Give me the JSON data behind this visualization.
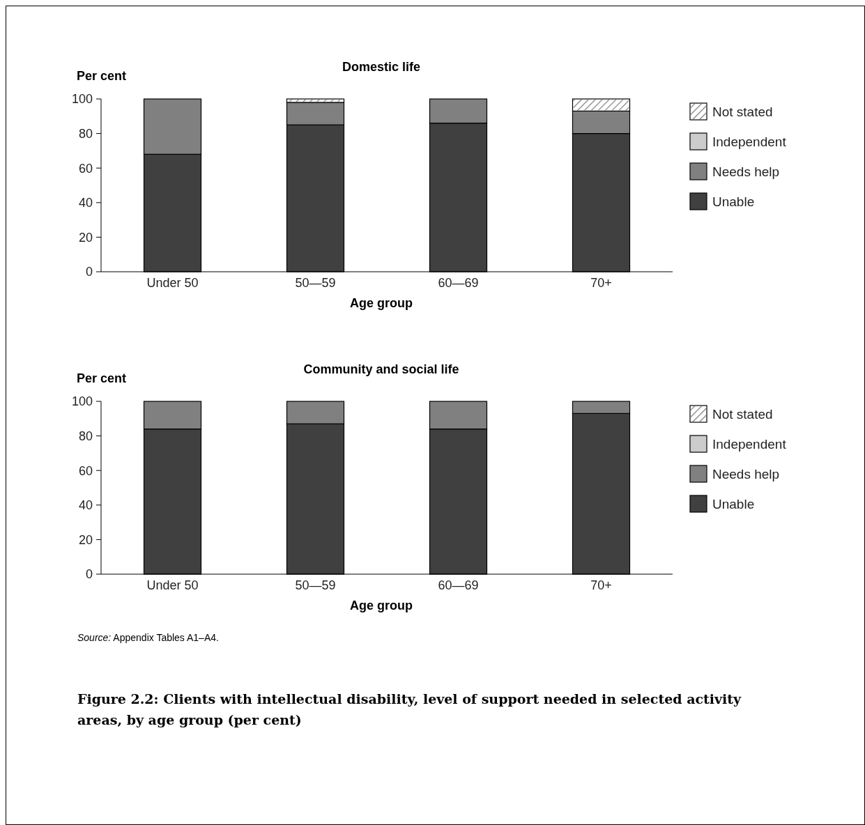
{
  "chart_data": [
    {
      "type": "bar",
      "title": "Domestic life",
      "ylabel": "Per cent",
      "xlabel": "Age group",
      "categories": [
        "Under 50",
        "50—59",
        "60—69",
        "70+"
      ],
      "stacked": true,
      "ylim": [
        0,
        100
      ],
      "yticks": [
        0,
        20,
        40,
        60,
        80,
        100
      ],
      "grid": false,
      "legend": "right",
      "series": [
        {
          "name": "Unable",
          "color": "#404040",
          "values": [
            68,
            85,
            86,
            80
          ]
        },
        {
          "name": "Needs help",
          "color": "#808080",
          "values": [
            32,
            13,
            14,
            13
          ]
        },
        {
          "name": "Independent",
          "color": "#cccccc",
          "values": [
            0,
            0,
            0,
            0
          ]
        },
        {
          "name": "Not stated",
          "color": "#ffffff",
          "values": [
            0,
            2,
            0,
            7
          ]
        }
      ]
    },
    {
      "type": "bar",
      "title": "Community and social life",
      "ylabel": "Per cent",
      "xlabel": "Age group",
      "categories": [
        "Under 50",
        "50—59",
        "60—69",
        "70+"
      ],
      "stacked": true,
      "ylim": [
        0,
        100
      ],
      "yticks": [
        0,
        20,
        40,
        60,
        80,
        100
      ],
      "grid": false,
      "legend": "right",
      "series": [
        {
          "name": "Unable",
          "color": "#404040",
          "values": [
            84,
            87,
            84,
            93
          ]
        },
        {
          "name": "Needs help",
          "color": "#808080",
          "values": [
            16,
            13,
            16,
            7
          ]
        },
        {
          "name": "Independent",
          "color": "#cccccc",
          "values": [
            0,
            0,
            0,
            0
          ]
        },
        {
          "name": "Not stated",
          "color": "#ffffff",
          "values": [
            0,
            0,
            0,
            0
          ]
        }
      ],
      "annotations": [
        "Source: Appendix Tables A1–A4.",
        "Figure 2.2: Clients with intellectual disability, level of support needed in selected activity areas, by age group (per cent)"
      ]
    }
  ]
}
